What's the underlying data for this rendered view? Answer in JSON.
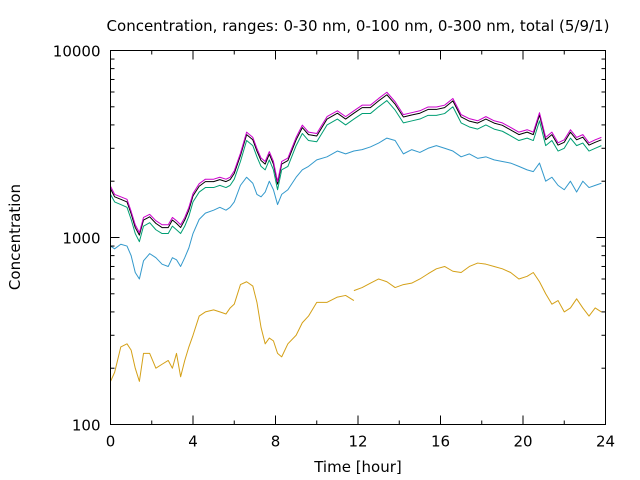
{
  "chart_data": {
    "type": "line",
    "title": "Concentration, ranges: 0-30 nm, 0-100 nm, 0-300 nm, total (5/9/1)",
    "xlabel": "Time [hour]",
    "ylabel": "Concentration",
    "xlim": [
      0,
      24
    ],
    "ylim": [
      100,
      10000
    ],
    "yscale": "log",
    "x_ticks": [
      0,
      4,
      8,
      12,
      16,
      20,
      24
    ],
    "y_ticks": [
      100,
      1000,
      10000
    ],
    "grid": false,
    "legend": "none",
    "series": [
      {
        "color": "#d4a017",
        "x": [
          0,
          0.2,
          0.5,
          0.8,
          1.0,
          1.2,
          1.4,
          1.6,
          1.9,
          2.2,
          2.5,
          2.8,
          3.0,
          3.2,
          3.4,
          3.6,
          3.8,
          4.0,
          4.3,
          4.6,
          5.0,
          5.3,
          5.6,
          5.8,
          null,
          5.8,
          6.0,
          6.3,
          6.6,
          6.9,
          7.1,
          7.3,
          7.5,
          7.7,
          7.9,
          8.1,
          8.3,
          8.6,
          9.0,
          9.3,
          9.6,
          10.0,
          10.5,
          11.0,
          11.4,
          11.8,
          null,
          11.8,
          12.2,
          12.6,
          13.0,
          13.4,
          13.8,
          14.2,
          14.6,
          15.0,
          15.4,
          15.8,
          16.2,
          16.6,
          17.0,
          17.4,
          17.8,
          18.2,
          18.6,
          19.0,
          19.4,
          19.8,
          20.2,
          20.5,
          20.8,
          21.1,
          21.4,
          21.7,
          22.0,
          22.3,
          22.6,
          22.9,
          23.2,
          23.5,
          23.8
        ],
        "y": [
          170,
          190,
          260,
          270,
          250,
          200,
          170,
          240,
          240,
          200,
          210,
          220,
          200,
          240,
          180,
          220,
          260,
          300,
          380,
          400,
          410,
          400,
          390,
          420,
          null,
          420,
          440,
          560,
          580,
          550,
          450,
          330,
          270,
          290,
          280,
          240,
          230,
          270,
          300,
          350,
          380,
          450,
          450,
          480,
          490,
          460,
          null,
          520,
          540,
          570,
          600,
          580,
          540,
          560,
          570,
          600,
          640,
          680,
          700,
          660,
          650,
          700,
          730,
          720,
          700,
          680,
          650,
          600,
          620,
          650,
          580,
          500,
          440,
          460,
          400,
          420,
          470,
          420,
          380,
          420,
          400
        ]
      },
      {
        "color": "#3399cc",
        "x": [
          0,
          0.2,
          0.5,
          0.8,
          1.0,
          1.2,
          1.4,
          1.6,
          1.9,
          2.2,
          2.5,
          2.8,
          3.0,
          3.2,
          3.4,
          3.6,
          3.8,
          4.0,
          4.3,
          4.6,
          5.0,
          5.3,
          5.6,
          5.8,
          null,
          5.8,
          6.0,
          6.3,
          6.6,
          6.9,
          7.1,
          7.3,
          7.5,
          7.7,
          7.9,
          8.1,
          8.3,
          8.6,
          9.0,
          9.3,
          9.6,
          10.0,
          10.5,
          11.0,
          11.4,
          11.8,
          12.2,
          12.6,
          13.0,
          13.4,
          13.8,
          14.2,
          14.6,
          15.0,
          15.4,
          15.8,
          16.2,
          16.6,
          17.0,
          17.4,
          17.8,
          18.2,
          18.6,
          19.0,
          19.4,
          19.8,
          20.2,
          20.5,
          20.8,
          21.1,
          21.4,
          21.7,
          22.0,
          22.3,
          22.6,
          22.9,
          23.2,
          23.5,
          23.8
        ],
        "y": [
          900,
          870,
          920,
          900,
          800,
          650,
          600,
          750,
          820,
          780,
          720,
          700,
          780,
          760,
          700,
          780,
          880,
          1050,
          1250,
          1350,
          1400,
          1450,
          1400,
          1450,
          null,
          1450,
          1550,
          1900,
          2100,
          1950,
          1700,
          1650,
          1750,
          2000,
          1800,
          1500,
          1700,
          1800,
          2100,
          2300,
          2400,
          2600,
          2700,
          2900,
          2800,
          2900,
          2950,
          3050,
          3200,
          3400,
          3300,
          2800,
          2950,
          2850,
          3000,
          3100,
          3000,
          2900,
          2700,
          2800,
          2650,
          2700,
          2600,
          2550,
          2500,
          2400,
          2300,
          2250,
          2500,
          2000,
          2100,
          1900,
          1800,
          2000,
          1750,
          2000,
          1850,
          1900,
          1950
        ]
      },
      {
        "color": "#009e73",
        "x": [
          0,
          0.2,
          0.5,
          0.8,
          1.0,
          1.2,
          1.4,
          1.6,
          1.9,
          2.2,
          2.5,
          2.8,
          3.0,
          3.2,
          3.4,
          3.6,
          3.8,
          4.0,
          4.3,
          4.6,
          5.0,
          5.3,
          5.6,
          5.8,
          null,
          5.8,
          6.0,
          6.3,
          6.6,
          6.9,
          7.1,
          7.3,
          7.5,
          7.7,
          7.9,
          8.1,
          8.3,
          8.6,
          9.0,
          9.3,
          9.6,
          10.0,
          10.5,
          11.0,
          11.4,
          11.8,
          12.2,
          12.6,
          13.0,
          13.4,
          13.8,
          14.2,
          14.6,
          15.0,
          15.4,
          15.8,
          16.2,
          16.6,
          17.0,
          17.4,
          17.8,
          18.2,
          18.6,
          19.0,
          19.4,
          19.8,
          20.2,
          20.5,
          20.8,
          21.1,
          21.4,
          21.7,
          22.0,
          22.3,
          22.6,
          22.9,
          23.2,
          23.5,
          23.8
        ],
        "y": [
          1700,
          1550,
          1500,
          1450,
          1250,
          1050,
          950,
          1150,
          1200,
          1100,
          1050,
          1050,
          1150,
          1100,
          1050,
          1150,
          1300,
          1550,
          1750,
          1850,
          1850,
          1900,
          1850,
          1900,
          null,
          1900,
          2050,
          2550,
          3300,
          3100,
          2700,
          2400,
          2300,
          2600,
          2300,
          1800,
          2300,
          2400,
          3100,
          3600,
          3300,
          3250,
          4000,
          4300,
          4000,
          4300,
          4600,
          4600,
          5000,
          5400,
          4800,
          4100,
          4200,
          4300,
          4500,
          4500,
          4600,
          5000,
          4100,
          3900,
          3800,
          4000,
          3800,
          3700,
          3500,
          3300,
          3400,
          3300,
          4200,
          3100,
          3300,
          2900,
          3000,
          3400,
          3100,
          3200,
          2900,
          3000,
          3100
        ]
      },
      {
        "color": "#000000",
        "x": [
          0,
          0.2,
          0.5,
          0.8,
          1.0,
          1.2,
          1.4,
          1.6,
          1.9,
          2.2,
          2.5,
          2.8,
          3.0,
          3.2,
          3.4,
          3.6,
          3.8,
          4.0,
          4.3,
          4.6,
          5.0,
          5.3,
          5.6,
          5.8,
          null,
          5.8,
          6.0,
          6.3,
          6.6,
          6.9,
          7.1,
          7.3,
          7.5,
          7.7,
          7.9,
          8.1,
          8.3,
          8.6,
          9.0,
          9.3,
          9.6,
          10.0,
          10.5,
          11.0,
          11.4,
          11.8,
          12.2,
          12.6,
          13.0,
          13.4,
          13.8,
          14.2,
          14.6,
          15.0,
          15.4,
          15.8,
          16.2,
          16.6,
          17.0,
          17.4,
          17.8,
          18.2,
          18.6,
          19.0,
          19.4,
          19.8,
          20.2,
          20.5,
          20.8,
          21.1,
          21.4,
          21.7,
          22.0,
          22.3,
          22.6,
          22.9,
          23.2,
          23.5,
          23.8
        ],
        "y": [
          1820,
          1650,
          1600,
          1550,
          1340,
          1130,
          1030,
          1240,
          1290,
          1190,
          1130,
          1130,
          1240,
          1190,
          1130,
          1240,
          1400,
          1670,
          1880,
          1990,
          1990,
          2040,
          1990,
          2040,
          null,
          2040,
          2200,
          2740,
          3550,
          3330,
          2900,
          2580,
          2470,
          2790,
          2470,
          1930,
          2470,
          2580,
          3330,
          3870,
          3550,
          3490,
          4300,
          4620,
          4300,
          4620,
          4950,
          4950,
          5380,
          5800,
          5160,
          4410,
          4520,
          4620,
          4840,
          4840,
          4950,
          5380,
          4410,
          4190,
          4090,
          4300,
          4090,
          3980,
          3760,
          3550,
          3660,
          3550,
          4520,
          3330,
          3550,
          3120,
          3230,
          3660,
          3330,
          3440,
          3120,
          3230,
          3330
        ]
      },
      {
        "color": "#cc00cc",
        "x": [
          0,
          0.2,
          0.5,
          0.8,
          1.0,
          1.2,
          1.4,
          1.6,
          1.9,
          2.2,
          2.5,
          2.8,
          3.0,
          3.2,
          3.4,
          3.6,
          3.8,
          4.0,
          4.3,
          4.6,
          5.0,
          5.3,
          5.6,
          5.8,
          null,
          5.8,
          6.0,
          6.3,
          6.6,
          6.9,
          7.1,
          7.3,
          7.5,
          7.7,
          7.9,
          8.1,
          8.3,
          8.6,
          9.0,
          9.3,
          9.6,
          10.0,
          10.5,
          11.0,
          11.4,
          11.8,
          12.2,
          12.6,
          13.0,
          13.4,
          13.8,
          14.2,
          14.6,
          15.0,
          15.4,
          15.8,
          16.2,
          16.6,
          17.0,
          17.4,
          17.8,
          18.2,
          18.6,
          19.0,
          19.4,
          19.8,
          20.2,
          20.5,
          20.8,
          21.1,
          21.4,
          21.7,
          22.0,
          22.3,
          22.6,
          22.9,
          23.2,
          23.5,
          23.8
        ],
        "y": [
          1880,
          1700,
          1650,
          1600,
          1380,
          1170,
          1060,
          1280,
          1330,
          1230,
          1170,
          1170,
          1280,
          1230,
          1170,
          1280,
          1450,
          1720,
          1940,
          2050,
          2050,
          2100,
          2050,
          2100,
          null,
          2100,
          2270,
          2820,
          3660,
          3430,
          2990,
          2660,
          2550,
          2880,
          2550,
          1990,
          2550,
          2660,
          3430,
          3990,
          3660,
          3600,
          4430,
          4760,
          4430,
          4760,
          5100,
          5100,
          5540,
          5980,
          5320,
          4540,
          4650,
          4760,
          4990,
          4990,
          5100,
          5540,
          4540,
          4320,
          4210,
          4430,
          4210,
          4100,
          3880,
          3660,
          3770,
          3660,
          4650,
          3430,
          3660,
          3210,
          3330,
          3770,
          3430,
          3550,
          3210,
          3330,
          3430
        ]
      }
    ]
  }
}
